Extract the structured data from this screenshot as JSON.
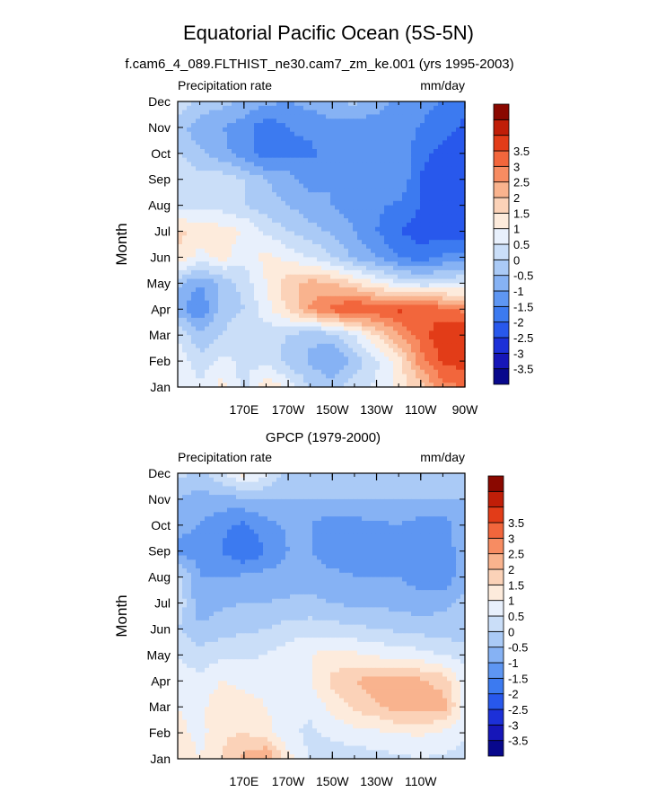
{
  "figure": {
    "title": "Equatorial Pacific Ocean (5S-5N)",
    "subtitle": "f.cam6_4_089.FLTHIST_ne30.cam7_zm_ke.001 (yrs 1995-2003)",
    "ylabel": "Month"
  },
  "colors": {
    "scale": [
      "#08088c",
      "#1616b8",
      "#1c30d8",
      "#2858ec",
      "#3c7af0",
      "#5e96f2",
      "#86b2f4",
      "#aacaf6",
      "#cadef8",
      "#e8f0fc",
      "#fdebdc",
      "#fbd2b8",
      "#f9b38e",
      "#f78c62",
      "#f2663c",
      "#e23c18",
      "#c01e08",
      "#8a0800"
    ]
  },
  "chart_data": [
    {
      "type": "heatmap",
      "panel_title": "",
      "left_label": "Precipitation rate",
      "right_label": "mm/day",
      "ylabel": "Month",
      "y_ticks": [
        "Jan",
        "Feb",
        "Mar",
        "Apr",
        "May",
        "Jun",
        "Jul",
        "Aug",
        "Sep",
        "Oct",
        "Nov",
        "Dec"
      ],
      "x_ticks": [
        "170E",
        "170W",
        "150W",
        "130W",
        "110W",
        "90W"
      ],
      "colorbar_labels": [
        "-3.5",
        "-3",
        "-2.5",
        "-2",
        "-1.5",
        "-1",
        "-0.5",
        "0",
        "0.5",
        "1",
        "1.5",
        "2",
        "2.5",
        "3",
        "3.5"
      ],
      "xlim": [
        140,
        270
      ],
      "x_grid": [
        140,
        150,
        160,
        170,
        180,
        190,
        200,
        210,
        220,
        230,
        240,
        250,
        260,
        270
      ],
      "values": [
        [
          1.0,
          0.6,
          1.2,
          0.3,
          1.5,
          0.8,
          0.0,
          -0.3,
          0.3,
          0.6,
          1.2,
          1.8,
          2.8,
          3.0
        ],
        [
          0.8,
          0.2,
          0.6,
          0.4,
          0.3,
          -0.2,
          -0.6,
          -1.0,
          -0.3,
          0.4,
          1.2,
          2.8,
          3.6,
          3.8
        ],
        [
          0.5,
          -0.4,
          0.0,
          0.5,
          0.2,
          0.0,
          -0.4,
          -0.2,
          0.5,
          1.5,
          2.5,
          3.2,
          3.9,
          4.0
        ],
        [
          -0.8,
          -1.5,
          -0.3,
          0.0,
          0.8,
          1.6,
          2.6,
          3.2,
          3.6,
          3.4,
          3.6,
          3.5,
          3.2,
          2.8
        ],
        [
          -0.4,
          -1.0,
          -0.4,
          0.2,
          1.0,
          1.8,
          2.2,
          2.0,
          1.5,
          1.0,
          0.5,
          0.2,
          0.3,
          0.5
        ],
        [
          1.5,
          0.8,
          1.2,
          0.6,
          1.2,
          0.8,
          0.5,
          0.0,
          -0.6,
          -1.0,
          -1.5,
          -1.8,
          -1.4,
          -1.2
        ],
        [
          1.6,
          1.4,
          1.2,
          1.0,
          0.4,
          0.0,
          -0.3,
          -0.6,
          -1.0,
          -1.5,
          -2.0,
          -2.2,
          -2.3,
          -2.5
        ],
        [
          0.3,
          0.2,
          0.3,
          0.0,
          -0.3,
          -0.5,
          -0.8,
          -1.0,
          -1.2,
          -1.4,
          -1.6,
          -2.0,
          -2.2,
          -2.5
        ],
        [
          0.5,
          0.2,
          0.3,
          0.0,
          -0.5,
          -0.8,
          -1.2,
          -1.0,
          -1.3,
          -1.2,
          -1.0,
          -2.1,
          -2.3,
          -2.5
        ],
        [
          0.0,
          -0.4,
          -0.8,
          -1.3,
          -1.8,
          -1.6,
          -1.6,
          -1.3,
          -1.2,
          -1.1,
          -1.0,
          -1.8,
          -2.2,
          -2.5
        ],
        [
          -0.3,
          -0.8,
          -1.0,
          -1.3,
          -1.8,
          -1.5,
          -1.4,
          -1.2,
          -1.2,
          -1.5,
          -1.4,
          -1.5,
          -1.8,
          -2.1
        ],
        [
          0.5,
          -0.2,
          -0.3,
          -0.6,
          -0.9,
          -1.0,
          -0.8,
          -0.6,
          -0.4,
          -0.6,
          -1.2,
          -1.4,
          -1.5,
          -1.9
        ]
      ]
    },
    {
      "type": "heatmap",
      "panel_title": "GPCP (1979-2000)",
      "left_label": "Precipitation rate",
      "right_label": "mm/day",
      "ylabel": "Month",
      "y_ticks": [
        "Jan",
        "Feb",
        "Mar",
        "Apr",
        "May",
        "Jun",
        "Jul",
        "Aug",
        "Sep",
        "Oct",
        "Nov",
        "Dec"
      ],
      "x_ticks": [
        "170E",
        "170W",
        "150W",
        "130W",
        "110W"
      ],
      "colorbar_labels": [
        "-3.5",
        "-3",
        "-2.5",
        "-2",
        "-1.5",
        "-1",
        "-0.5",
        "0",
        "0.5",
        "1",
        "1.5",
        "2",
        "2.5",
        "3",
        "3.5"
      ],
      "xlim": [
        140,
        270
      ],
      "x_grid": [
        140,
        150,
        160,
        170,
        180,
        190,
        200,
        210,
        220,
        230,
        240,
        250,
        260,
        270
      ],
      "values": [
        [
          1.5,
          1.0,
          1.5,
          2.2,
          2.6,
          1.2,
          0.4,
          0.2,
          0.2,
          0.3,
          0.4,
          0.5,
          0.4,
          0.3
        ],
        [
          1.2,
          0.8,
          1.4,
          1.5,
          1.2,
          0.6,
          0.4,
          0.6,
          0.8,
          0.9,
          1.0,
          1.1,
          0.9,
          0.6
        ],
        [
          1.0,
          0.8,
          1.5,
          1.3,
          1.0,
          0.6,
          0.6,
          1.2,
          1.6,
          1.9,
          2.3,
          2.1,
          2.3,
          0.8
        ],
        [
          0.8,
          0.6,
          1.0,
          0.8,
          0.8,
          0.8,
          1.0,
          1.6,
          2.0,
          2.3,
          2.4,
          2.1,
          1.8,
          0.7
        ],
        [
          0.5,
          0.2,
          0.4,
          0.4,
          0.5,
          0.8,
          1.0,
          1.2,
          1.1,
          0.9,
          0.8,
          0.7,
          0.5,
          0.3
        ],
        [
          0.0,
          -0.4,
          -0.2,
          -0.1,
          0.0,
          0.2,
          0.3,
          0.2,
          0.1,
          0.0,
          -0.1,
          -0.2,
          -0.3,
          -0.3
        ],
        [
          0.4,
          -0.8,
          -0.6,
          -0.5,
          -0.5,
          -0.4,
          -0.4,
          -0.5,
          -0.6,
          -0.6,
          -0.7,
          -0.8,
          -0.6,
          -0.4
        ],
        [
          0.2,
          -1.0,
          -1.0,
          -0.9,
          -0.8,
          -0.8,
          -0.7,
          -0.8,
          -1.0,
          -1.0,
          -1.0,
          -1.2,
          -1.4,
          -0.6
        ],
        [
          -1.2,
          -1.2,
          -1.5,
          -2.0,
          -1.5,
          -1.0,
          -1.0,
          -1.4,
          -1.3,
          -1.3,
          -1.2,
          -1.3,
          -1.4,
          -0.6
        ],
        [
          -0.8,
          -1.0,
          -1.4,
          -1.6,
          -1.2,
          -0.9,
          -1.0,
          -1.3,
          -1.2,
          -1.1,
          -1.0,
          -1.2,
          -1.3,
          -0.6
        ],
        [
          -0.5,
          -0.7,
          -0.7,
          -0.6,
          -0.5,
          -0.5,
          -0.5,
          -0.5,
          -0.5,
          -0.5,
          -0.5,
          -0.5,
          -0.5,
          -0.5
        ],
        [
          0.2,
          -0.2,
          0.5,
          1.2,
          0.6,
          -0.2,
          -0.4,
          -0.4,
          -0.4,
          -0.3,
          -0.2,
          -0.2,
          -0.2,
          -0.2
        ]
      ]
    }
  ]
}
